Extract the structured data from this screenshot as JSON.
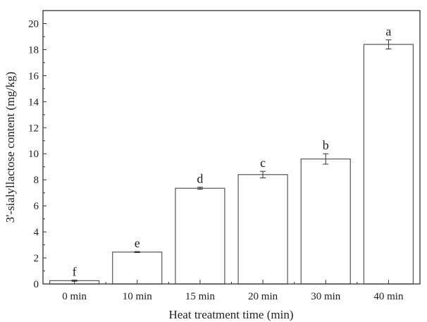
{
  "chart_data": {
    "type": "bar",
    "title": "",
    "xlabel": "Heat treatment time (min)",
    "ylabel": "3'-sialyllactose content (mg/kg)",
    "categories": [
      "0 min",
      "10 min",
      "15 min",
      "20 min",
      "30 min",
      "40 min"
    ],
    "values": [
      0.25,
      2.45,
      7.35,
      8.4,
      9.6,
      18.4
    ],
    "errors": [
      0.05,
      0.04,
      0.08,
      0.25,
      0.4,
      0.35
    ],
    "significance_letters": [
      "f",
      "e",
      "d",
      "c",
      "b",
      "a"
    ],
    "ylim": [
      0,
      21
    ],
    "yticks": [
      0,
      2,
      4,
      6,
      8,
      10,
      12,
      14,
      16,
      18,
      20
    ],
    "grid": false,
    "legend": "none",
    "colors": {
      "bar_fill": "#ffffff",
      "bar_stroke": "#555555",
      "axis": "#333333"
    }
  }
}
